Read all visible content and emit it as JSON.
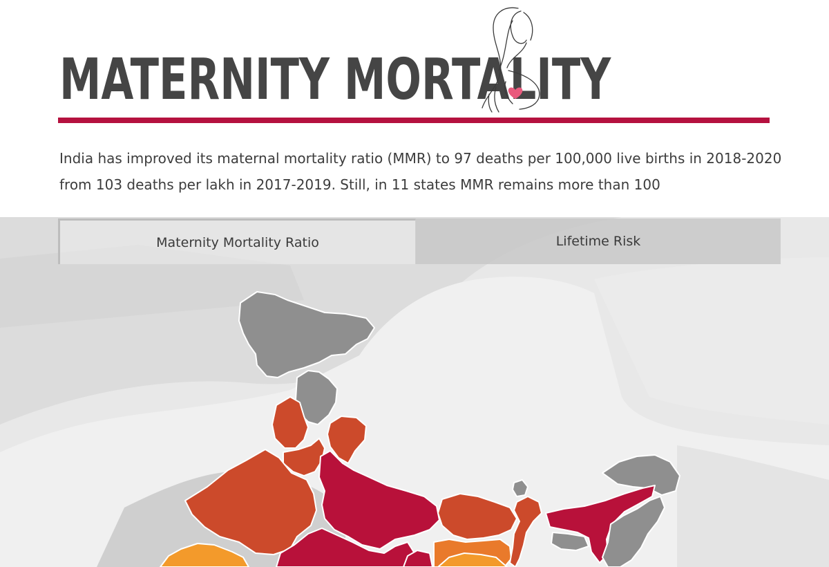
{
  "header": {
    "title": "MATERNITY MORTALITY",
    "intro": "India has improved its maternal mortality ratio (MMR) to 97 deaths per 100,000 live births in 2018-2020 from 103 deaths per lakh in 2017-2019. Still, in 11 states MMR remains more than 100"
  },
  "tabs": [
    {
      "label": "Maternity Mortality Ratio",
      "active": true
    },
    {
      "label": "Lifetime Risk",
      "active": false
    }
  ],
  "colors": {
    "accent_rule": "#b5113f",
    "highest": "#b8113a",
    "high": "#cc4a2b",
    "medium": "#e97a2b",
    "lower": "#f39a2b",
    "no_data": "#8f8f8f"
  },
  "map": {
    "metric": "Maternity Mortality Ratio",
    "regions": [
      {
        "name": "jammu-kashmir-ladakh",
        "category": "no_data"
      },
      {
        "name": "himachal-pradesh",
        "category": "no_data"
      },
      {
        "name": "punjab",
        "category": "high"
      },
      {
        "name": "uttarakhand",
        "category": "high"
      },
      {
        "name": "haryana",
        "category": "high"
      },
      {
        "name": "rajasthan",
        "category": "high"
      },
      {
        "name": "uttar-pradesh",
        "category": "highest"
      },
      {
        "name": "madhya-pradesh",
        "category": "highest"
      },
      {
        "name": "bihar",
        "category": "high"
      },
      {
        "name": "jharkhand",
        "category": "medium"
      },
      {
        "name": "west-bengal",
        "category": "high"
      },
      {
        "name": "gujarat",
        "category": "lower"
      },
      {
        "name": "chhattisgarh",
        "category": "highest"
      },
      {
        "name": "odisha",
        "category": "lower"
      },
      {
        "name": "sikkim",
        "category": "no_data"
      },
      {
        "name": "assam",
        "category": "highest"
      },
      {
        "name": "arunachal-pradesh",
        "category": "no_data"
      },
      {
        "name": "meghalaya",
        "category": "no_data"
      },
      {
        "name": "northeast-states",
        "category": "no_data"
      }
    ]
  }
}
